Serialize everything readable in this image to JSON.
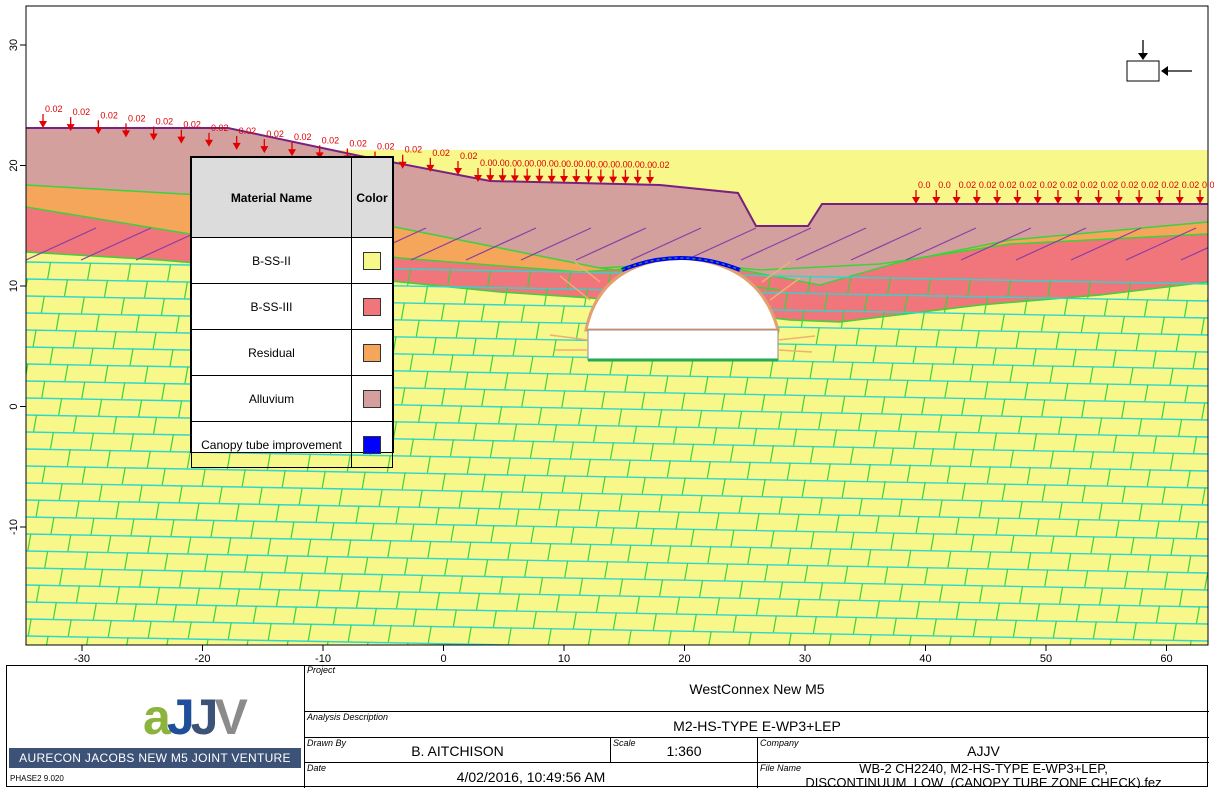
{
  "legend": {
    "header_name": "Material Name",
    "header_color": "Color",
    "rows": [
      {
        "name": "B-SS-II",
        "color": "#f7f78a"
      },
      {
        "name": "B-SS-III",
        "color": "#f0767b"
      },
      {
        "name": "Residual",
        "color": "#f5a65a"
      },
      {
        "name": "Alluvium",
        "color": "#d4a09e"
      },
      {
        "name": "Canopy tube improvement",
        "color": "#0000ff"
      }
    ]
  },
  "axes": {
    "x_ticks": [
      "-30",
      "-20",
      "-10",
      "0",
      "10",
      "20",
      "30",
      "40",
      "50",
      "60"
    ],
    "y_ticks": [
      "30",
      "20",
      "10",
      "0",
      "-10"
    ]
  },
  "loads": {
    "left_labels": [
      "0.02",
      "0.02",
      "0.02",
      "0.02",
      "0.02",
      "0.02",
      "0.02",
      "0.02",
      "0.02",
      "0.02",
      "0.02",
      "0.02",
      "0.02",
      "0.02",
      "0.02",
      "0.02"
    ],
    "mid_labels": [
      "0.0",
      "0.0",
      "0.0",
      "0.0",
      "0.0",
      "0.0",
      "0.0",
      "0.0",
      "0.0",
      "0.0",
      "0.0",
      "0.0",
      "0.0",
      "0.0",
      "0.02"
    ],
    "right_labels": [
      "0.0",
      "0.0",
      "0.02",
      "0.02",
      "0.02",
      "0.02",
      "0.02",
      "0.02",
      "0.02",
      "0.02",
      "0.02",
      "0.02",
      "0.02",
      "0.02",
      "0.0"
    ]
  },
  "colors": {
    "bss2": "#f7f78a",
    "bss3": "#f0767b",
    "residual": "#f5a65a",
    "alluvium": "#d4a09e",
    "canopy": "#0000ff",
    "joint_cyan": "#2fd6d0",
    "joint_green": "#3cd23c",
    "load_red": "#e00000",
    "surface_purple": "#7a2080"
  },
  "title_block": {
    "project_label": "Project",
    "project": "WestConnex New M5",
    "analysis_label": "Analysis Description",
    "analysis": "M2-HS-TYPE E-WP3+LEP",
    "drawn_label": "Drawn By",
    "drawn": "B. AITCHISON",
    "scale_label": "Scale",
    "scale": "1:360",
    "company_label": "Company",
    "company": "AJJV",
    "date_label": "Date",
    "date": "4/02/2016, 10:49:56 AM",
    "file_label": "File Name",
    "file_line1": "WB-2 CH2240, M2-HS-TYPE E-WP3+LEP,",
    "file_line2": "DISCONTINUUM_LOW_(CANOPY TUBE ZONE CHECK).fez",
    "logo_text": "aJJV",
    "logo_banner": "AURECON JACOBS NEW M5 JOINT VENTURE",
    "version": "PHASE2 9.020"
  }
}
